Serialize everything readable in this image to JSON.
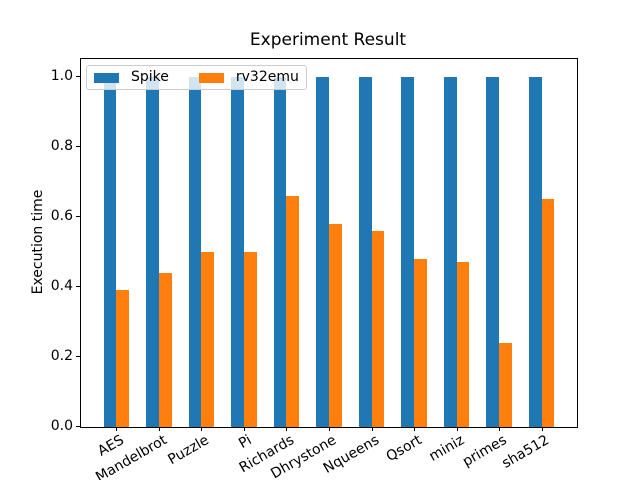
{
  "chart_data": {
    "type": "bar",
    "title": "Experiment Result",
    "xlabel": "",
    "ylabel": "Execution time",
    "categories": [
      "AES",
      "Mandelbrot",
      "Puzzle",
      "Pi",
      "Richards",
      "Dhrystone",
      "Nqueens",
      "Qsort",
      "miniz",
      "primes",
      "sha512"
    ],
    "series": [
      {
        "name": "Spike",
        "color": "#1f77b4",
        "values": [
          1.0,
          1.0,
          1.0,
          1.0,
          1.0,
          1.0,
          1.0,
          1.0,
          1.0,
          1.0,
          1.0
        ]
      },
      {
        "name": "rv32emu",
        "color": "#ff7f0e",
        "values": [
          0.39,
          0.44,
          0.5,
          0.5,
          0.66,
          0.58,
          0.56,
          0.48,
          0.47,
          0.24,
          0.65
        ]
      }
    ],
    "yticks": [
      "0.0",
      "0.2",
      "0.4",
      "0.6",
      "0.8",
      "1.0"
    ],
    "ylim": [
      0,
      1.05
    ],
    "grid": false,
    "legend_position": "upper-left",
    "x_tick_rotation_deg": 30,
    "bar_group_width_units": 0.3,
    "axis_color": "#000000",
    "background_color": "#ffffff"
  }
}
